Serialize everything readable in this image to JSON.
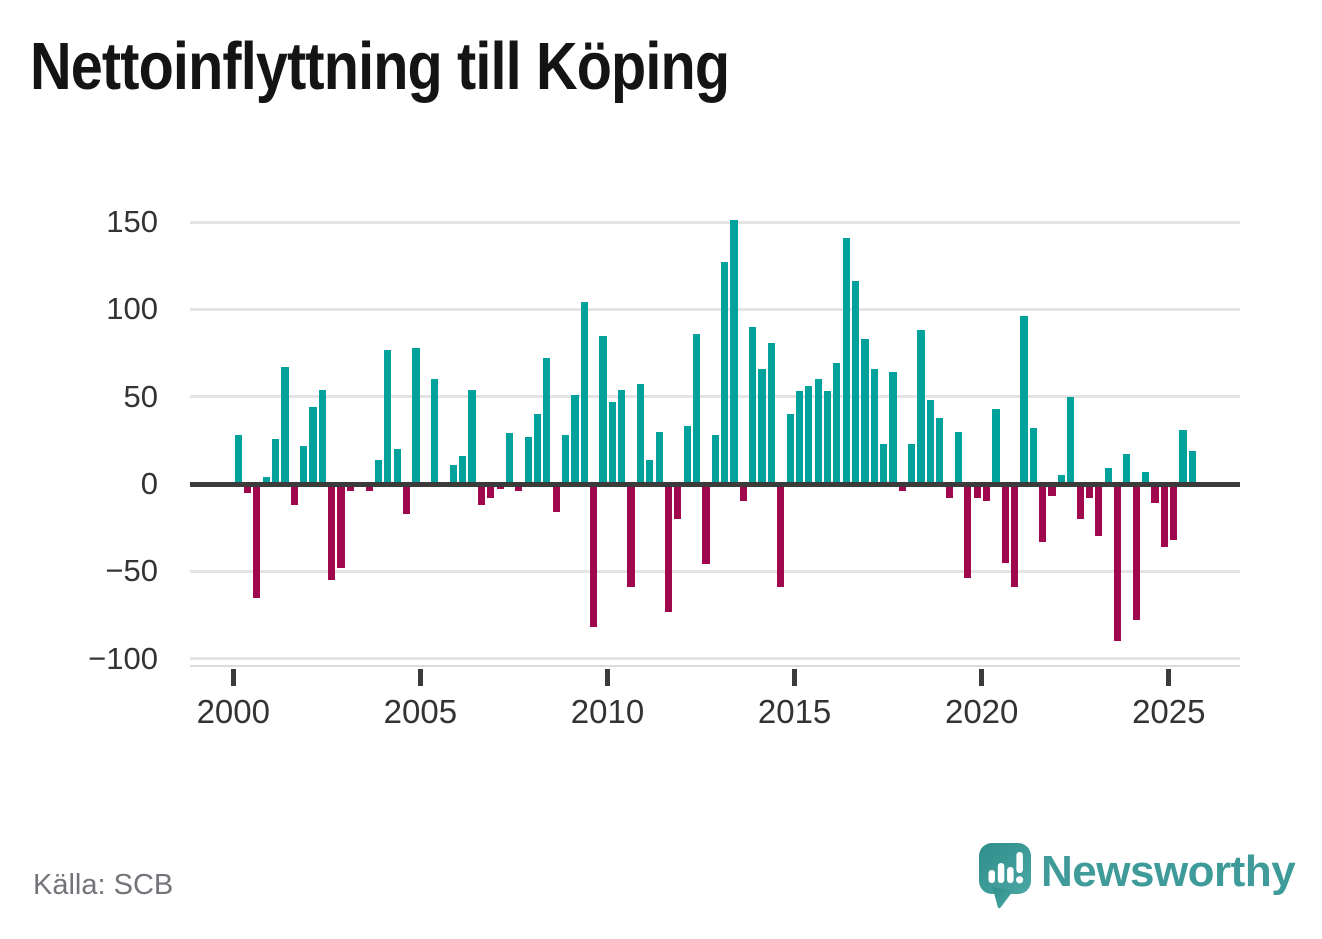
{
  "title": "Nettoinflyttning till Köping",
  "source": "Källa: SCB",
  "branding": {
    "logo_text": "Newsworthy",
    "logo_icon": "speech-bubble-barchart-icon"
  },
  "colors": {
    "positive_bar": "#00a29b",
    "negative_bar": "#a0084d",
    "zero_axis": "#3b3b3b",
    "gridline": "#e4e4e4",
    "brand_teal": "#3e9b99",
    "title_text": "#141414",
    "tick_text": "#333333",
    "source_text": "#74747b"
  },
  "chart_data": {
    "type": "bar",
    "title": "Nettoinflyttning till Köping",
    "xlabel": "",
    "ylabel": "",
    "ylim": [
      -100,
      150
    ],
    "grid": "horizontal",
    "legend": "none",
    "y_ticks": [
      150,
      100,
      50,
      0,
      -50,
      -100
    ],
    "x_ticks": [
      "2000",
      "2005",
      "2010",
      "2015",
      "2020",
      "2025"
    ],
    "x": [
      "2000Q1",
      "2000Q2",
      "2000Q3",
      "2000Q4",
      "2001Q1",
      "2001Q2",
      "2001Q3",
      "2001Q4",
      "2002Q1",
      "2002Q2",
      "2002Q3",
      "2002Q4",
      "2003Q1",
      "2003Q2",
      "2003Q3",
      "2003Q4",
      "2004Q1",
      "2004Q2",
      "2004Q3",
      "2004Q4",
      "2005Q1",
      "2005Q2",
      "2005Q3",
      "2005Q4",
      "2006Q1",
      "2006Q2",
      "2006Q3",
      "2006Q4",
      "2007Q1",
      "2007Q2",
      "2007Q3",
      "2007Q4",
      "2008Q1",
      "2008Q2",
      "2008Q3",
      "2008Q4",
      "2009Q1",
      "2009Q2",
      "2009Q3",
      "2009Q4",
      "2010Q1",
      "2010Q2",
      "2010Q3",
      "2010Q4",
      "2011Q1",
      "2011Q2",
      "2011Q3",
      "2011Q4",
      "2012Q1",
      "2012Q2",
      "2012Q3",
      "2012Q4",
      "2013Q1",
      "2013Q2",
      "2013Q3",
      "2013Q4",
      "2014Q1",
      "2014Q2",
      "2014Q3",
      "2014Q4",
      "2015Q1",
      "2015Q2",
      "2015Q3",
      "2015Q4",
      "2016Q1",
      "2016Q2",
      "2016Q3",
      "2016Q4",
      "2017Q1",
      "2017Q2",
      "2017Q3",
      "2017Q4",
      "2018Q1",
      "2018Q2",
      "2018Q3",
      "2018Q4",
      "2019Q1",
      "2019Q2",
      "2019Q3",
      "2019Q4",
      "2020Q1",
      "2020Q2",
      "2020Q3",
      "2020Q4",
      "2021Q1",
      "2021Q2",
      "2021Q3",
      "2021Q4",
      "2022Q1",
      "2022Q2",
      "2022Q3",
      "2022Q4",
      "2023Q1",
      "2023Q2",
      "2023Q3",
      "2023Q4",
      "2024Q1",
      "2024Q2",
      "2024Q3",
      "2024Q4",
      "2025Q1",
      "2025Q2",
      "2025Q3"
    ],
    "values": [
      28,
      -5,
      -65,
      4,
      26,
      67,
      -12,
      22,
      44,
      54,
      -55,
      -48,
      -4,
      0,
      -4,
      14,
      77,
      20,
      -17,
      78,
      0,
      60,
      0,
      11,
      16,
      54,
      -12,
      -8,
      -3,
      29,
      -4,
      27,
      40,
      72,
      -16,
      28,
      51,
      104,
      -82,
      85,
      47,
      54,
      -59,
      57,
      14,
      30,
      -73,
      -20,
      33,
      86,
      -46,
      28,
      127,
      151,
      -10,
      90,
      66,
      81,
      -59,
      40,
      53,
      56,
      60,
      53,
      69,
      141,
      116,
      83,
      66,
      23,
      64,
      -4,
      23,
      88,
      48,
      38,
      -8,
      30,
      -54,
      -8,
      -10,
      43,
      -45,
      -59,
      96,
      32,
      -33,
      -7,
      5,
      50,
      -20,
      -8,
      -30,
      9,
      -90,
      17,
      -78,
      7,
      -11,
      -36,
      -32,
      31,
      19
    ]
  }
}
